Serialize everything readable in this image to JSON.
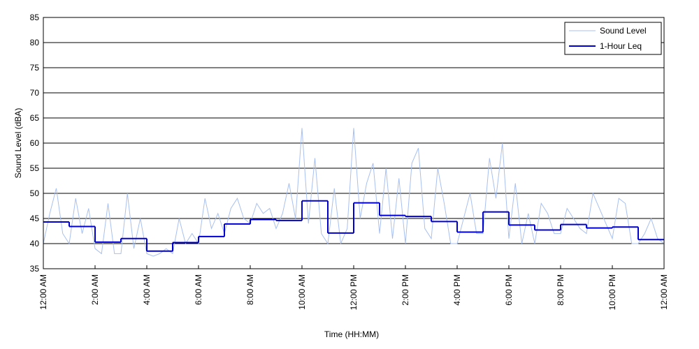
{
  "chart_data": {
    "type": "line",
    "xlabel": "Time (HH:MM)",
    "ylabel": "Sound Level (dBA)",
    "xlim": [
      0,
      24
    ],
    "ylim": [
      35,
      85
    ],
    "yticks": [
      35,
      40,
      45,
      50,
      55,
      60,
      65,
      70,
      75,
      80,
      85
    ],
    "xticks": [
      {
        "value": 0,
        "label": "12:00 AM"
      },
      {
        "value": 2,
        "label": "2:00 AM"
      },
      {
        "value": 4,
        "label": "4:00 AM"
      },
      {
        "value": 6,
        "label": "6:00 AM"
      },
      {
        "value": 8,
        "label": "8:00 AM"
      },
      {
        "value": 10,
        "label": "10:00 AM"
      },
      {
        "value": 12,
        "label": "12:00 PM"
      },
      {
        "value": 14,
        "label": "2:00 PM"
      },
      {
        "value": 16,
        "label": "4:00 PM"
      },
      {
        "value": 18,
        "label": "6:00 PM"
      },
      {
        "value": 20,
        "label": "8:00 PM"
      },
      {
        "value": 22,
        "label": "10:00 PM"
      },
      {
        "value": 24,
        "label": "12:00 AM"
      }
    ],
    "grid": true,
    "legend": "upper right",
    "series": [
      {
        "name": "Sound Level",
        "color": "#a8c0f0",
        "step": false,
        "x": [
          0,
          0.25,
          0.5,
          0.75,
          1,
          1.25,
          1.5,
          1.75,
          2,
          2.25,
          2.5,
          2.75,
          3,
          3.25,
          3.5,
          3.75,
          4,
          4.25,
          4.5,
          4.75,
          5,
          5.25,
          5.5,
          5.75,
          6,
          6.25,
          6.5,
          6.75,
          7,
          7.25,
          7.5,
          7.75,
          8,
          8.25,
          8.5,
          8.75,
          9,
          9.25,
          9.5,
          9.75,
          10,
          10.25,
          10.5,
          10.75,
          11,
          11.25,
          11.5,
          11.75,
          12,
          12.25,
          12.5,
          12.75,
          13,
          13.25,
          13.5,
          13.75,
          14,
          14.25,
          14.5,
          14.75,
          15,
          15.25,
          15.5,
          15.75,
          16,
          16.25,
          16.5,
          16.75,
          17,
          17.25,
          17.5,
          17.75,
          18,
          18.25,
          18.5,
          18.75,
          19,
          19.25,
          19.5,
          19.75,
          20,
          20.25,
          20.5,
          20.75,
          21,
          21.25,
          21.5,
          21.75,
          22,
          22.25,
          22.5,
          22.75,
          23,
          23.25,
          23.5,
          23.75,
          24
        ],
        "values": [
          40,
          46,
          51,
          42,
          40,
          49,
          42,
          47,
          39,
          38,
          48,
          38,
          38,
          50,
          39,
          45,
          38,
          37.5,
          38,
          39,
          38,
          45,
          40,
          42,
          40,
          49,
          43,
          46,
          42,
          47,
          49,
          45,
          44,
          48,
          46,
          47,
          43,
          46,
          52,
          45,
          63,
          44,
          57,
          42,
          40,
          51,
          40,
          43,
          63,
          45,
          52,
          56,
          42,
          55,
          41,
          53,
          40,
          56,
          59,
          43,
          41,
          55,
          48,
          40,
          40,
          45,
          50,
          42,
          42,
          57,
          49,
          60,
          41,
          52,
          40,
          46,
          40,
          48,
          46,
          42,
          42,
          47,
          45,
          43,
          42,
          50,
          47,
          44,
          41,
          49,
          48,
          40,
          40,
          42,
          45,
          41,
          40
        ]
      },
      {
        "name": "1-Hour Leq",
        "color": "#0000d0",
        "step": true,
        "x": [
          0,
          1,
          2,
          3,
          4,
          5,
          6,
          7,
          8,
          9,
          10,
          11,
          12,
          13,
          14,
          15,
          16,
          17,
          18,
          19,
          20,
          21,
          22,
          23
        ],
        "values": [
          44.3,
          43.4,
          40.3,
          41,
          38.5,
          40.2,
          41.4,
          43.9,
          44.8,
          44.6,
          48.5,
          42.1,
          48.1,
          45.6,
          45.4,
          44.4,
          42.3,
          46.3,
          43.7,
          42.7,
          43.8,
          43.1,
          43.3,
          40.8
        ]
      }
    ]
  }
}
